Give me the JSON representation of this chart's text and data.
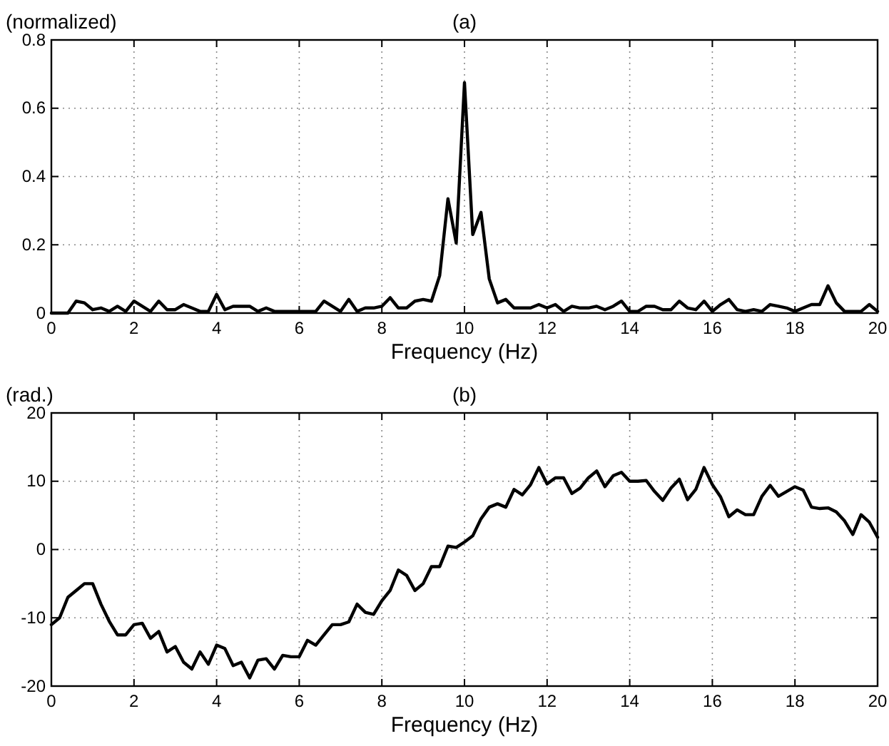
{
  "chart_data": [
    {
      "type": "line",
      "title": "(a)",
      "ylabel": "(normalized)",
      "xlabel": "Frequency (Hz)",
      "xlim": [
        0,
        20
      ],
      "xticks": [
        0,
        2,
        4,
        6,
        8,
        10,
        12,
        14,
        16,
        18,
        20
      ],
      "ylim": [
        0,
        0.8
      ],
      "yticks": [
        0,
        0.2,
        0.4,
        0.6,
        0.8
      ],
      "grid": true,
      "line_style": "solid",
      "marker": "none",
      "x": [
        0,
        0.2,
        0.4,
        0.6,
        0.8,
        1,
        1.2,
        1.4,
        1.6,
        1.8,
        2,
        2.2,
        2.4,
        2.6,
        2.8,
        3,
        3.2,
        3.4,
        3.6,
        3.8,
        4,
        4.2,
        4.4,
        4.6,
        4.8,
        5,
        5.2,
        5.4,
        5.6,
        5.8,
        6,
        6.2,
        6.4,
        6.6,
        6.8,
        7,
        7.2,
        7.4,
        7.6,
        7.8,
        8,
        8.2,
        8.4,
        8.6,
        8.8,
        9,
        9.2,
        9.4,
        9.6,
        9.8,
        10,
        10.2,
        10.4,
        10.6,
        10.8,
        11,
        11.2,
        11.4,
        11.6,
        11.8,
        12,
        12.2,
        12.4,
        12.6,
        12.8,
        13,
        13.2,
        13.4,
        13.6,
        13.8,
        14,
        14.2,
        14.4,
        14.6,
        14.8,
        15,
        15.2,
        15.4,
        15.6,
        15.8,
        16,
        16.2,
        16.4,
        16.6,
        16.8,
        17,
        17.2,
        17.4,
        17.6,
        17.8,
        18,
        18.2,
        18.4,
        18.6,
        18.8,
        19,
        19.2,
        19.4,
        19.6,
        19.8,
        20
      ],
      "series": [
        {
          "color": "#000000",
          "values": [
            0,
            0,
            0,
            0.035,
            0.03,
            0.01,
            0.015,
            0.005,
            0.02,
            0.005,
            0.035,
            0.02,
            0.005,
            0.035,
            0.01,
            0.01,
            0.025,
            0.015,
            0.005,
            0.005,
            0.055,
            0.01,
            0.02,
            0.02,
            0.02,
            0.005,
            0.015,
            0.005,
            0.005,
            0.005,
            0.005,
            0.005,
            0.005,
            0.035,
            0.02,
            0.005,
            0.04,
            0.005,
            0.015,
            0.015,
            0.02,
            0.045,
            0.015,
            0.015,
            0.035,
            0.04,
            0.035,
            0.11,
            0.335,
            0.205,
            0.675,
            0.23,
            0.295,
            0.1,
            0.03,
            0.04,
            0.015,
            0.015,
            0.015,
            0.025,
            0.015,
            0.025,
            0.005,
            0.02,
            0.015,
            0.015,
            0.02,
            0.01,
            0.02,
            0.035,
            0.005,
            0.005,
            0.02,
            0.02,
            0.01,
            0.01,
            0.035,
            0.015,
            0.01,
            0.035,
            0.005,
            0.025,
            0.04,
            0.01,
            0.005,
            0.01,
            0.005,
            0.025,
            0.02,
            0.015,
            0.005,
            0.015,
            0.025,
            0.025,
            0.08,
            0.03,
            0.005,
            0.005,
            0.005,
            0.025,
            0.005
          ]
        }
      ]
    },
    {
      "type": "line",
      "title": "(b)",
      "ylabel": "(rad.)",
      "xlabel": "Frequency (Hz)",
      "xlim": [
        0,
        20
      ],
      "xticks": [
        0,
        2,
        4,
        6,
        8,
        10,
        12,
        14,
        16,
        18,
        20
      ],
      "ylim": [
        -20,
        20
      ],
      "yticks": [
        -20,
        -10,
        0,
        10,
        20
      ],
      "grid": true,
      "line_style": "solid",
      "marker": "none",
      "x": [
        0,
        0.2,
        0.4,
        0.6,
        0.8,
        1,
        1.2,
        1.4,
        1.6,
        1.8,
        2,
        2.2,
        2.4,
        2.6,
        2.8,
        3,
        3.2,
        3.4,
        3.6,
        3.8,
        4,
        4.2,
        4.4,
        4.6,
        4.8,
        5,
        5.2,
        5.4,
        5.6,
        5.8,
        6,
        6.2,
        6.4,
        6.6,
        6.8,
        7,
        7.2,
        7.4,
        7.6,
        7.8,
        8,
        8.2,
        8.4,
        8.6,
        8.8,
        9,
        9.2,
        9.4,
        9.6,
        9.8,
        10,
        10.2,
        10.4,
        10.6,
        10.8,
        11,
        11.2,
        11.4,
        11.6,
        11.8,
        12,
        12.2,
        12.4,
        12.6,
        12.8,
        13,
        13.2,
        13.4,
        13.6,
        13.8,
        14,
        14.2,
        14.4,
        14.6,
        14.8,
        15,
        15.2,
        15.4,
        15.6,
        15.8,
        16,
        16.2,
        16.4,
        16.6,
        16.8,
        17,
        17.2,
        17.4,
        17.6,
        17.8,
        18,
        18.2,
        18.4,
        18.6,
        18.8,
        19,
        19.2,
        19.4,
        19.6,
        19.8,
        20
      ],
      "series": [
        {
          "color": "#000000",
          "values": [
            -11,
            -10,
            -7,
            -6,
            -5,
            -5,
            -8,
            -10.5,
            -12.5,
            -12.5,
            -11,
            -10.8,
            -13,
            -12,
            -15,
            -14.2,
            -16.5,
            -17.5,
            -15,
            -16.8,
            -14,
            -14.5,
            -17,
            -16.5,
            -18.8,
            -16.2,
            -16,
            -17.5,
            -15.5,
            -15.7,
            -15.7,
            -13.3,
            -14,
            -12.5,
            -11,
            -11,
            -10.6,
            -8,
            -9.2,
            -9.5,
            -7.5,
            -6,
            -3,
            -3.8,
            -6,
            -5,
            -2.5,
            -2.5,
            0.5,
            0.3,
            1.1,
            2,
            4.5,
            6.2,
            6.7,
            6.2,
            8.8,
            8,
            9.5,
            12,
            9.6,
            10.5,
            10.5,
            8.2,
            9,
            10.5,
            11.5,
            9.2,
            10.8,
            11.3,
            10,
            10,
            10.1,
            8.5,
            7.2,
            9,
            10.3,
            7.3,
            8.8,
            12,
            9.5,
            7.7,
            4.8,
            5.8,
            5.1,
            5.1,
            7.8,
            9.4,
            7.8,
            8.5,
            9.2,
            8.7,
            6.2,
            6,
            6.1,
            5.5,
            4.2,
            2.2,
            5.1,
            4,
            1.8
          ]
        }
      ]
    }
  ]
}
